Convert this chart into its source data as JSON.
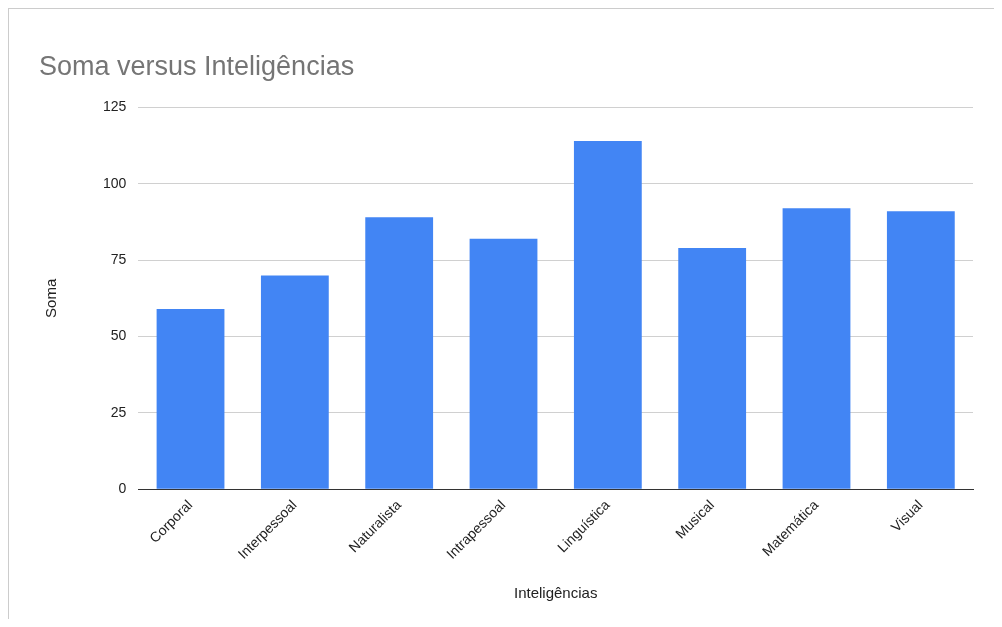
{
  "chart_data": {
    "type": "bar",
    "title": "Soma versus Inteligências",
    "xlabel": "Inteligências",
    "ylabel": "Soma",
    "categories": [
      "Corporal",
      "Interpessoal",
      "Naturalista",
      "Intrapessoal",
      "Linguística",
      "Musical",
      "Matemática",
      "Visual"
    ],
    "values": [
      59,
      70,
      89,
      82,
      114,
      79,
      92,
      91
    ],
    "color": "#4285f4",
    "ylim": [
      0,
      125
    ],
    "yticks": [
      0,
      25,
      50,
      75,
      100,
      125
    ],
    "grid": "y",
    "legend": false
  }
}
